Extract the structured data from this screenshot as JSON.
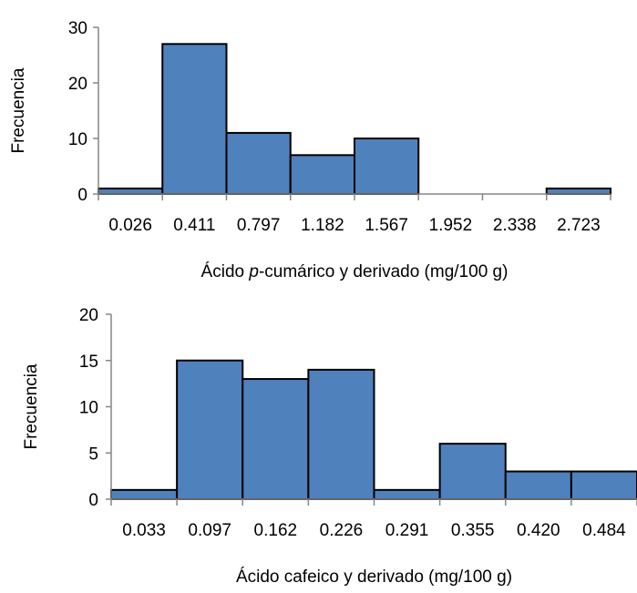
{
  "chart_data": [
    {
      "type": "bar",
      "subtype": "histogram",
      "title": "",
      "ylabel": "Frecuencia",
      "xlabel_parts": [
        {
          "text": "Ácido ",
          "italic": false
        },
        {
          "text": "p",
          "italic": true
        },
        {
          "text": "-cumárico y derivado (mg/100 g)",
          "italic": false
        }
      ],
      "categories": [
        "0.026",
        "0.411",
        "0.797",
        "1.182",
        "1.567",
        "1.952",
        "2.338",
        "2.723"
      ],
      "values": [
        1,
        27,
        11,
        7,
        10,
        0,
        0,
        1
      ],
      "ylim": [
        0,
        30
      ],
      "yticks": [
        "0",
        "10",
        "20",
        "30"
      ],
      "grid": false,
      "legend": "none",
      "bar_color": "#4F81BD",
      "bar_edge_color": "#000000"
    },
    {
      "type": "bar",
      "subtype": "histogram",
      "title": "",
      "ylabel": "Frecuencia",
      "xlabel_parts": [
        {
          "text": "Ácido cafeico y derivado (mg/100 g)",
          "italic": false
        }
      ],
      "categories": [
        "0.033",
        "0.097",
        "0.162",
        "0.226",
        "0.291",
        "0.355",
        "0.420",
        "0.484"
      ],
      "values": [
        1,
        15,
        13,
        14,
        1,
        6,
        3,
        3
      ],
      "ylim": [
        0,
        20
      ],
      "yticks": [
        "0",
        "5",
        "10",
        "15",
        "20"
      ],
      "grid": false,
      "legend": "none",
      "bar_color": "#4F81BD",
      "bar_edge_color": "#000000"
    }
  ]
}
